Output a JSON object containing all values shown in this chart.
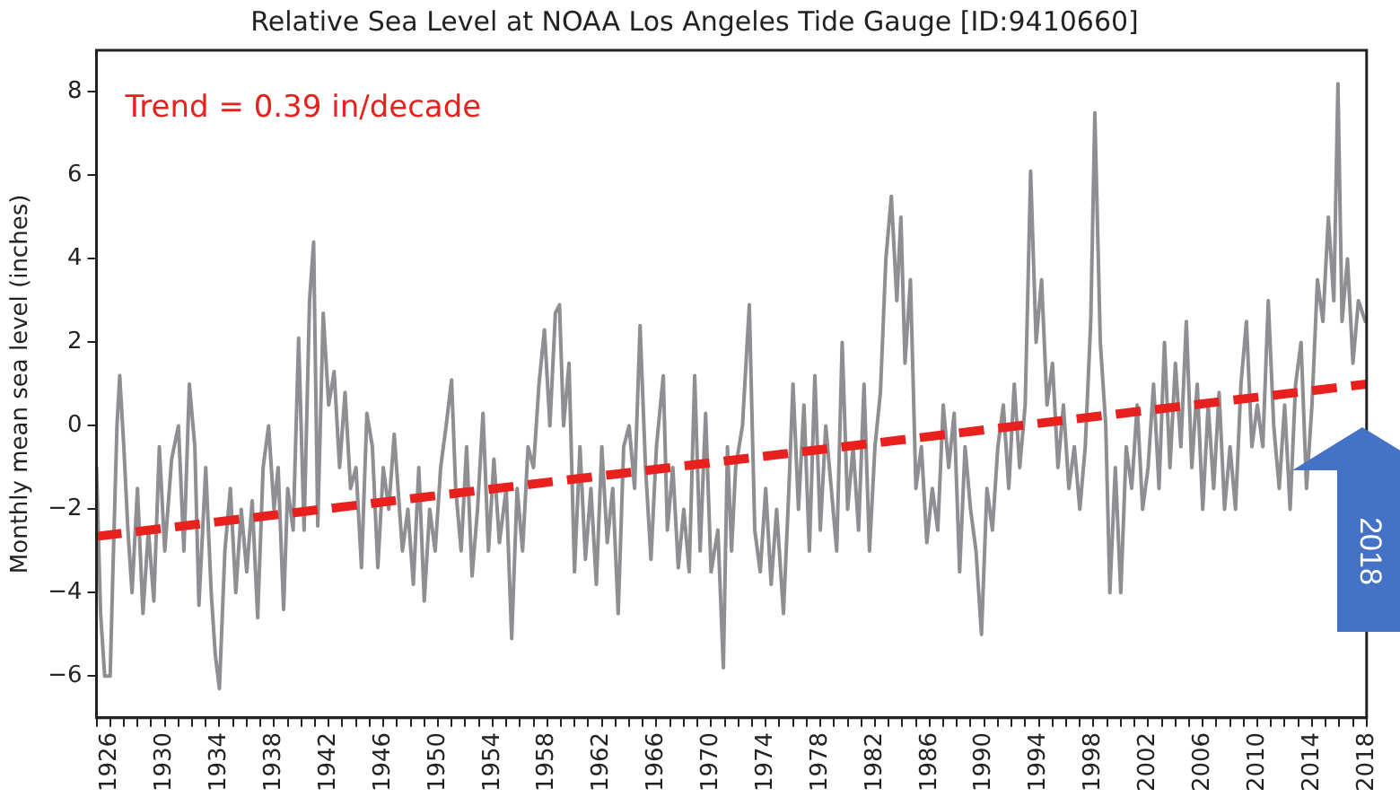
{
  "chart_data": {
    "type": "line",
    "title": "Relative Sea Level at NOAA Los Angeles Tide Gauge [ID:9410660]",
    "ylabel": "Monthly mean sea level (inches)",
    "annotations": [
      "Trend = 0.39 in/decade",
      "2018"
    ],
    "xlim": [
      1925,
      2018
    ],
    "ylim": [
      -7,
      9
    ],
    "yticks": [
      -6,
      -4,
      -2,
      0,
      2,
      4,
      6,
      8
    ],
    "xticks": [
      {
        "value": 1925,
        "label": null
      },
      1926,
      {
        "value": 1927,
        "label": null
      },
      {
        "value": 1928,
        "label": null
      },
      {
        "value": 1929,
        "label": null
      },
      1930,
      {
        "value": 1931,
        "label": null
      },
      {
        "value": 1932,
        "label": null
      },
      {
        "value": 1933,
        "label": null
      },
      1934,
      {
        "value": 1935,
        "label": null
      },
      {
        "value": 1936,
        "label": null
      },
      {
        "value": 1937,
        "label": null
      },
      1938,
      {
        "value": 1939,
        "label": null
      },
      {
        "value": 1940,
        "label": null
      },
      {
        "value": 1941,
        "label": null
      },
      1942,
      {
        "value": 1943,
        "label": null
      },
      {
        "value": 1944,
        "label": null
      },
      {
        "value": 1945,
        "label": null
      },
      1946,
      {
        "value": 1947,
        "label": null
      },
      {
        "value": 1948,
        "label": null
      },
      {
        "value": 1949,
        "label": null
      },
      1950,
      {
        "value": 1951,
        "label": null
      },
      {
        "value": 1952,
        "label": null
      },
      {
        "value": 1953,
        "label": null
      },
      1954,
      {
        "value": 1955,
        "label": null
      },
      {
        "value": 1956,
        "label": null
      },
      {
        "value": 1957,
        "label": null
      },
      1958,
      {
        "value": 1959,
        "label": null
      },
      {
        "value": 1960,
        "label": null
      },
      {
        "value": 1961,
        "label": null
      },
      1962,
      {
        "value": 1963,
        "label": null
      },
      {
        "value": 1964,
        "label": null
      },
      {
        "value": 1965,
        "label": null
      },
      1966,
      {
        "value": 1967,
        "label": null
      },
      {
        "value": 1968,
        "label": null
      },
      {
        "value": 1969,
        "label": null
      },
      1970,
      {
        "value": 1971,
        "label": null
      },
      {
        "value": 1972,
        "label": null
      },
      {
        "value": 1973,
        "label": null
      },
      1974,
      {
        "value": 1975,
        "label": null
      },
      {
        "value": 1976,
        "label": null
      },
      {
        "value": 1977,
        "label": null
      },
      1978,
      {
        "value": 1979,
        "label": null
      },
      {
        "value": 1980,
        "label": null
      },
      {
        "value": 1981,
        "label": null
      },
      1982,
      {
        "value": 1983,
        "label": null
      },
      {
        "value": 1984,
        "label": null
      },
      {
        "value": 1985,
        "label": null
      },
      1986,
      {
        "value": 1987,
        "label": null
      },
      {
        "value": 1988,
        "label": null
      },
      {
        "value": 1989,
        "label": null
      },
      1990,
      {
        "value": 1991,
        "label": null
      },
      {
        "value": 1992,
        "label": null
      },
      {
        "value": 1993,
        "label": null
      },
      1994,
      {
        "value": 1995,
        "label": null
      },
      {
        "value": 1996,
        "label": null
      },
      {
        "value": 1997,
        "label": null
      },
      1998,
      {
        "value": 1999,
        "label": null
      },
      {
        "value": 2000,
        "label": null
      },
      {
        "value": 2001,
        "label": null
      },
      2002,
      {
        "value": 2003,
        "label": null
      },
      {
        "value": 2004,
        "label": null
      },
      {
        "value": 2005,
        "label": null
      },
      2006,
      {
        "value": 2007,
        "label": null
      },
      {
        "value": 2008,
        "label": null
      },
      {
        "value": 2009,
        "label": null
      },
      2010,
      {
        "value": 2011,
        "label": null
      },
      {
        "value": 2012,
        "label": null
      },
      {
        "value": 2013,
        "label": null
      },
      2014,
      {
        "value": 2015,
        "label": null
      },
      {
        "value": 2016,
        "label": null
      },
      {
        "value": 2017,
        "label": null
      },
      2018
    ],
    "grid": false,
    "legend": false,
    "marker": "none",
    "series": [
      {
        "color": "#8e8e93",
        "line_style": "solid",
        "x": [
          1925.0,
          1925.3,
          1925.6,
          1926.0,
          1926.2,
          1926.5,
          1926.7,
          1927.0,
          1927.3,
          1927.6,
          1928.0,
          1928.4,
          1928.8,
          1929.2,
          1929.6,
          1930.0,
          1930.5,
          1931.0,
          1931.4,
          1931.8,
          1932.2,
          1932.5,
          1933.0,
          1933.4,
          1933.7,
          1934.0,
          1934.4,
          1934.8,
          1935.2,
          1935.6,
          1936.0,
          1936.4,
          1936.8,
          1937.2,
          1937.6,
          1938.0,
          1938.3,
          1938.7,
          1939.0,
          1939.4,
          1939.8,
          1940.2,
          1940.6,
          1940.9,
          1941.2,
          1941.6,
          1942.0,
          1942.4,
          1942.8,
          1943.2,
          1943.6,
          1944.0,
          1944.4,
          1944.8,
          1945.2,
          1945.6,
          1946.0,
          1946.4,
          1946.8,
          1947.4,
          1947.8,
          1948.2,
          1948.6,
          1949.0,
          1949.4,
          1949.8,
          1950.2,
          1950.6,
          1951.0,
          1951.3,
          1951.7,
          1952.1,
          1952.5,
          1952.9,
          1953.3,
          1953.7,
          1954.1,
          1954.5,
          1955.0,
          1955.4,
          1955.8,
          1956.2,
          1956.6,
          1957.0,
          1957.4,
          1957.8,
          1958.2,
          1958.6,
          1958.9,
          1959.2,
          1959.6,
          1960.0,
          1960.4,
          1960.8,
          1961.2,
          1961.6,
          1962.0,
          1962.4,
          1962.8,
          1963.2,
          1963.6,
          1964.0,
          1964.4,
          1964.8,
          1965.2,
          1965.6,
          1966.0,
          1966.5,
          1966.8,
          1967.2,
          1967.6,
          1968.0,
          1968.4,
          1968.8,
          1969.2,
          1969.6,
          1970.0,
          1970.5,
          1970.9,
          1971.2,
          1971.5,
          1971.8,
          1972.3,
          1972.8,
          1973.2,
          1973.6,
          1974.0,
          1974.4,
          1974.8,
          1975.3,
          1975.7,
          1976.0,
          1976.4,
          1976.8,
          1977.2,
          1977.6,
          1978.0,
          1978.4,
          1978.8,
          1979.2,
          1979.6,
          1980.0,
          1980.4,
          1980.8,
          1981.2,
          1981.6,
          1982.0,
          1982.4,
          1982.8,
          1983.2,
          1983.6,
          1983.9,
          1984.2,
          1984.6,
          1985.0,
          1985.4,
          1985.8,
          1986.2,
          1986.6,
          1987.0,
          1987.4,
          1987.8,
          1988.2,
          1988.6,
          1989.0,
          1989.4,
          1989.8,
          1990.2,
          1990.6,
          1991.0,
          1991.4,
          1991.8,
          1992.2,
          1992.6,
          1993.0,
          1993.4,
          1993.8,
          1994.2,
          1994.6,
          1995.0,
          1995.4,
          1995.8,
          1996.2,
          1996.6,
          1997.0,
          1997.4,
          1997.8,
          1998.1,
          1998.5,
          1998.9,
          1999.2,
          1999.6,
          2000.0,
          2000.4,
          2000.8,
          2001.2,
          2001.6,
          2002.0,
          2002.4,
          2002.8,
          2003.2,
          2003.6,
          2004.0,
          2004.4,
          2004.8,
          2005.2,
          2005.6,
          2006.0,
          2006.4,
          2006.8,
          2007.2,
          2007.6,
          2008.0,
          2008.4,
          2008.8,
          2009.2,
          2009.6,
          2010.0,
          2010.4,
          2010.8,
          2011.2,
          2011.6,
          2012.0,
          2012.4,
          2012.8,
          2013.2,
          2013.6,
          2014.0,
          2014.4,
          2014.8,
          2015.2,
          2015.6,
          2015.9,
          2016.2,
          2016.6,
          2017.0,
          2017.4,
          2017.9
        ],
        "values": [
          -1.0,
          -4.5,
          -6.0,
          -6.0,
          -3.5,
          0,
          1.2,
          -0.5,
          -2.5,
          -4.0,
          -1.5,
          -4.5,
          -2.5,
          -4.2,
          -0.5,
          -3.0,
          -0.8,
          0.0,
          -3.0,
          1.0,
          -0.5,
          -4.3,
          -1.0,
          -4.0,
          -5.5,
          -6.3,
          -3.0,
          -1.5,
          -4.0,
          -2.0,
          -3.5,
          -1.8,
          -4.6,
          -1.0,
          0.0,
          -2.0,
          -1.0,
          -4.4,
          -1.5,
          -2.5,
          2.1,
          -2.5,
          3.0,
          4.4,
          -2.4,
          2.7,
          0.5,
          1.3,
          -1.0,
          0.8,
          -1.5,
          -1.0,
          -3.4,
          0.3,
          -0.5,
          -3.4,
          -1.0,
          -2.0,
          -0.2,
          -3.0,
          -2.0,
          -3.8,
          -1.0,
          -4.2,
          -2.0,
          -3.0,
          -1.0,
          0.0,
          1.1,
          -1.5,
          -3.0,
          -0.5,
          -3.6,
          -2.0,
          0.3,
          -3.0,
          -0.8,
          -2.8,
          -1.5,
          -5.1,
          -1.5,
          -3.0,
          -0.5,
          -1.0,
          1.0,
          2.3,
          0.0,
          2.7,
          2.9,
          0.0,
          1.5,
          -3.5,
          -0.5,
          -3.2,
          -1.5,
          -3.8,
          -0.5,
          -2.8,
          -1.5,
          -4.5,
          -0.5,
          0.0,
          -1.5,
          2.4,
          -1.0,
          -3.2,
          -0.5,
          1.2,
          -2.5,
          -1.0,
          -3.4,
          -2.0,
          -3.5,
          1.2,
          -3.0,
          0.3,
          -3.5,
          -2.5,
          -5.8,
          -0.5,
          -3.0,
          -1.0,
          0.0,
          2.9,
          -2.5,
          -3.5,
          -1.5,
          -3.8,
          -2.0,
          -4.5,
          -1.5,
          1.0,
          -2.0,
          0.5,
          -3.0,
          1.2,
          -2.5,
          0.0,
          -1.5,
          -3.0,
          2.0,
          -2.0,
          -0.5,
          -2.5,
          1.0,
          -3.0,
          -0.5,
          0.8,
          4.0,
          5.5,
          3.0,
          5.0,
          1.5,
          3.5,
          -1.5,
          -0.5,
          -2.8,
          -1.5,
          -2.5,
          0.5,
          -1.0,
          0.3,
          -3.5,
          -0.5,
          -2.0,
          -3.0,
          -5.0,
          -1.5,
          -2.5,
          -0.5,
          0.5,
          -1.5,
          1.0,
          -1.0,
          0.5,
          6.1,
          2.0,
          3.5,
          0.5,
          1.5,
          -1.0,
          0.5,
          -1.5,
          -0.5,
          -2.0,
          -0.5,
          2.5,
          7.5,
          2.0,
          0.0,
          -4.0,
          -1.0,
          -4.0,
          -0.5,
          -1.5,
          0.5,
          -2.0,
          -1.0,
          1.0,
          -1.5,
          2.0,
          -1.0,
          1.5,
          -0.5,
          2.5,
          -1.0,
          1.0,
          -2.0,
          0.5,
          -1.5,
          0.8,
          -2.0,
          -0.5,
          -2.0,
          1.0,
          2.5,
          -0.5,
          0.5,
          -0.5,
          3.0,
          0.0,
          -1.5,
          0.5,
          -2.0,
          1.0,
          2.0,
          -1.5,
          0.5,
          3.5,
          2.5,
          5.0,
          3.0,
          8.2,
          2.5,
          4.0,
          1.5,
          3.0,
          2.5
        ]
      },
      {
        "type": "line",
        "color": "#e8201e",
        "line_style": "dashed",
        "x": [
          1925,
          2018
        ],
        "values": [
          -2.65,
          1.0
        ]
      }
    ]
  }
}
